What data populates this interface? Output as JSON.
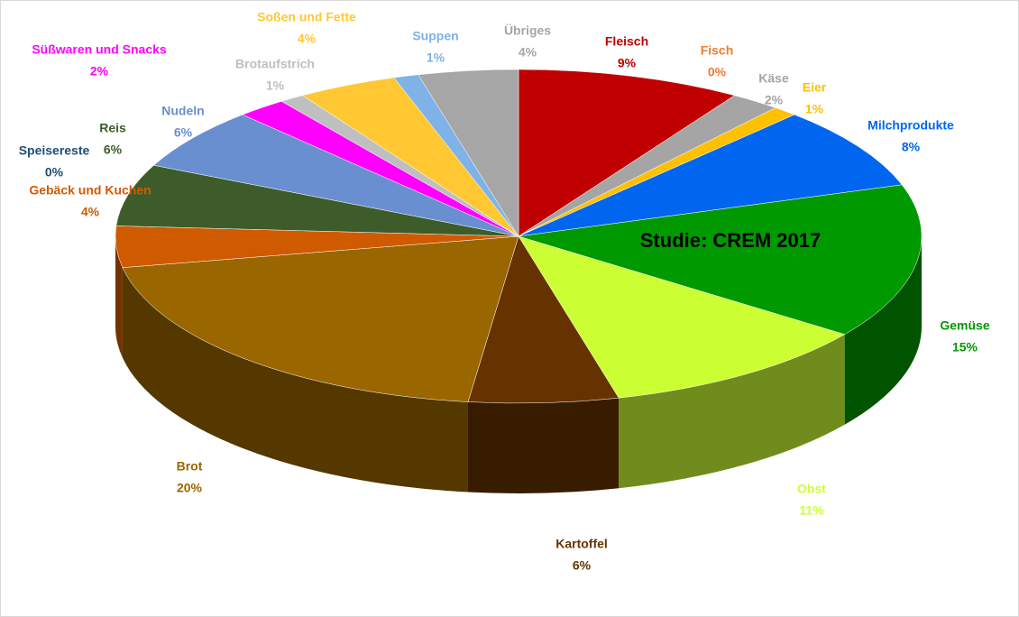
{
  "chart_data": {
    "type": "pie",
    "annotation": "Studie: CREM 2017",
    "categories": [
      "Fleisch",
      "Fisch",
      "Käse",
      "Eier",
      "Milchprodukte",
      "Gemüse",
      "Obst",
      "Kartoffel",
      "Brot",
      "Gebäck und Kuchen",
      "Speisereste",
      "Reis",
      "Nudeln",
      "Süßwaren und Snacks",
      "Brotaufstrich",
      "Soßen und Fette",
      "Suppen",
      "Übriges"
    ],
    "values": [
      9,
      0,
      2,
      1,
      8,
      15,
      11,
      6,
      20,
      4,
      0,
      6,
      6,
      2,
      1,
      4,
      1,
      4
    ],
    "value_labels": [
      "9%",
      "0%",
      "2%",
      "1%",
      "8%",
      "15%",
      "11%",
      "6%",
      "20%",
      "4%",
      "0%",
      "6%",
      "6%",
      "2%",
      "1%",
      "4%",
      "1%",
      "4%"
    ],
    "colors": [
      "#c00000",
      "#ed7d31",
      "#a5a5a5",
      "#ffc000",
      "#0066f0",
      "#009900",
      "#ccff33",
      "#663300",
      "#996600",
      "#d05a00",
      "#1f4e79",
      "#3d5c2a",
      "#6a8fd0",
      "#ff00ff",
      "#bfbfbf",
      "#ffc832",
      "#7fb2e6",
      "#a6a6a6"
    ]
  }
}
